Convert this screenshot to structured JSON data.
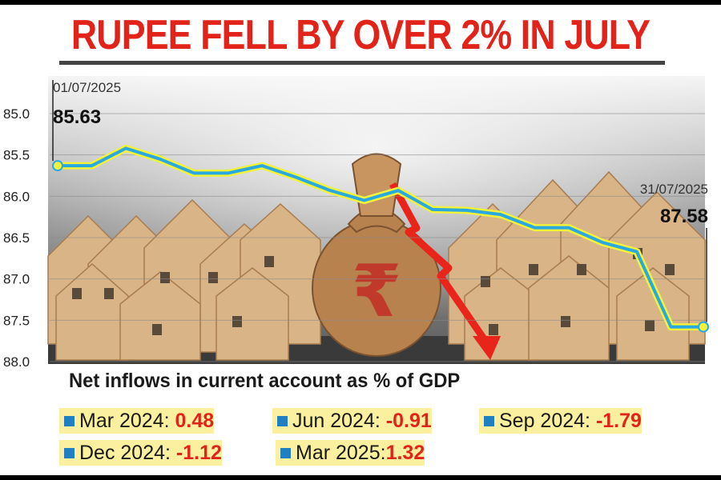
{
  "headline": "RUPEE FELL BY OVER 2% IN JULY",
  "chart_data": {
    "type": "line",
    "series": [
      {
        "values": [
          85.63,
          85.63,
          85.42,
          85.55,
          85.72,
          85.72,
          85.63,
          85.77,
          85.93,
          86.05,
          85.93,
          86.16,
          86.17,
          86.22,
          86.38,
          86.38,
          86.56,
          86.67,
          87.58,
          87.58
        ]
      }
    ],
    "ylim": [
      88.0,
      85.0
    ],
    "y_ticks": [
      "85.0",
      "85.5",
      "86.0",
      "86.5",
      "87.0",
      "87.5",
      "88.0"
    ],
    "y_inverted": true,
    "start": {
      "date": "01/07/2025",
      "value": "85.63"
    },
    "end": {
      "date": "31/07/2025",
      "value": "87.58"
    },
    "line_color": "#2aa8e0",
    "glow_color": "#f2f23a",
    "grid": true
  },
  "inflows": {
    "title": "Net inflows in current account as % of GDP",
    "rows": [
      [
        {
          "label": "Mar 2024: ",
          "value": "0.48"
        },
        {
          "label": "Jun 2024: ",
          "value": "-0.91"
        },
        {
          "label": "Sep 2024: ",
          "value": "-1.79"
        }
      ],
      [
        {
          "label": "Dec 2024: ",
          "value": "-1.12"
        },
        {
          "label": "Mar 2025:",
          "value": "1.32"
        }
      ]
    ]
  }
}
